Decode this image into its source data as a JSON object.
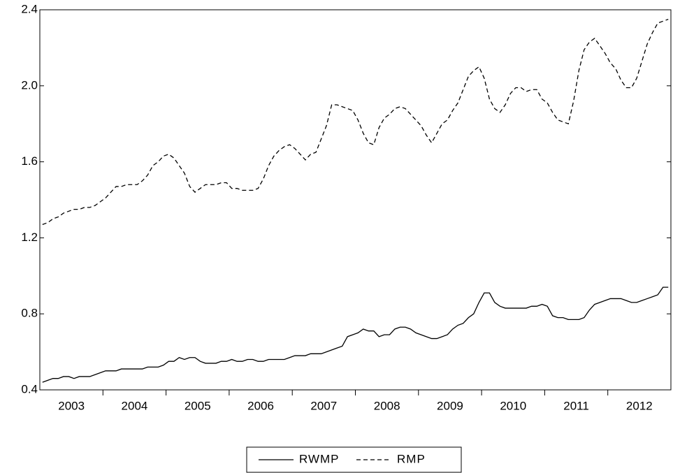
{
  "chart_data": {
    "type": "line",
    "categories": [
      "2003",
      null,
      null,
      null,
      null,
      null,
      null,
      null,
      null,
      null,
      null,
      null,
      "2004",
      null,
      null,
      null,
      null,
      null,
      null,
      null,
      null,
      null,
      null,
      null,
      "2005",
      null,
      null,
      null,
      null,
      null,
      null,
      null,
      null,
      null,
      null,
      null,
      "2006",
      null,
      null,
      null,
      null,
      null,
      null,
      null,
      null,
      null,
      null,
      null,
      "2007",
      null,
      null,
      null,
      null,
      null,
      null,
      null,
      null,
      null,
      null,
      null,
      "2008",
      null,
      null,
      null,
      null,
      null,
      null,
      null,
      null,
      null,
      null,
      null,
      "2009",
      null,
      null,
      null,
      null,
      null,
      null,
      null,
      null,
      null,
      null,
      null,
      "2010",
      null,
      null,
      null,
      null,
      null,
      null,
      null,
      null,
      null,
      null,
      null,
      "2011",
      null,
      null,
      null,
      null,
      null,
      null,
      null,
      null,
      null,
      null,
      null,
      "2012",
      null,
      null,
      null,
      null,
      null,
      null,
      null,
      null,
      null,
      null,
      null
    ],
    "series": [
      {
        "name": "RWMP",
        "color": "#000000",
        "style": "solid",
        "values": [
          0.44,
          0.45,
          0.46,
          0.46,
          0.47,
          0.47,
          0.46,
          0.47,
          0.47,
          0.47,
          0.48,
          0.49,
          0.5,
          0.5,
          0.5,
          0.51,
          0.51,
          0.51,
          0.51,
          0.51,
          0.52,
          0.52,
          0.52,
          0.53,
          0.55,
          0.55,
          0.57,
          0.56,
          0.57,
          0.57,
          0.55,
          0.54,
          0.54,
          0.54,
          0.55,
          0.55,
          0.56,
          0.55,
          0.55,
          0.56,
          0.56,
          0.55,
          0.55,
          0.56,
          0.56,
          0.56,
          0.56,
          0.57,
          0.58,
          0.58,
          0.58,
          0.59,
          0.59,
          0.59,
          0.6,
          0.61,
          0.62,
          0.63,
          0.68,
          0.69,
          0.7,
          0.72,
          0.71,
          0.71,
          0.68,
          0.69,
          0.69,
          0.72,
          0.73,
          0.73,
          0.72,
          0.7,
          0.69,
          0.68,
          0.67,
          0.67,
          0.68,
          0.69,
          0.72,
          0.74,
          0.75,
          0.78,
          0.8,
          0.86,
          0.91,
          0.91,
          0.86,
          0.84,
          0.83,
          0.83,
          0.83,
          0.83,
          0.83,
          0.84,
          0.84,
          0.85,
          0.84,
          0.79,
          0.78,
          0.78,
          0.77,
          0.77,
          0.77,
          0.78,
          0.82,
          0.85,
          0.86,
          0.87,
          0.88,
          0.88,
          0.88,
          0.87,
          0.86,
          0.86,
          0.87,
          0.88,
          0.89,
          0.9,
          0.94,
          0.94
        ]
      },
      {
        "name": "RMP",
        "color": "#000000",
        "style": "dashed",
        "values": [
          1.27,
          1.28,
          1.3,
          1.31,
          1.33,
          1.34,
          1.35,
          1.35,
          1.36,
          1.36,
          1.37,
          1.39,
          1.41,
          1.44,
          1.47,
          1.47,
          1.48,
          1.48,
          1.48,
          1.5,
          1.53,
          1.58,
          1.6,
          1.63,
          1.64,
          1.62,
          1.58,
          1.54,
          1.47,
          1.44,
          1.46,
          1.48,
          1.48,
          1.48,
          1.49,
          1.49,
          1.46,
          1.46,
          1.45,
          1.45,
          1.45,
          1.46,
          1.51,
          1.58,
          1.63,
          1.66,
          1.68,
          1.69,
          1.67,
          1.64,
          1.61,
          1.64,
          1.65,
          1.72,
          1.79,
          1.9,
          1.9,
          1.89,
          1.88,
          1.87,
          1.82,
          1.75,
          1.7,
          1.69,
          1.78,
          1.83,
          1.85,
          1.88,
          1.89,
          1.88,
          1.85,
          1.82,
          1.79,
          1.74,
          1.7,
          1.75,
          1.8,
          1.82,
          1.87,
          1.91,
          1.98,
          2.05,
          2.08,
          2.1,
          2.04,
          1.93,
          1.88,
          1.86,
          1.9,
          1.96,
          1.99,
          1.99,
          1.97,
          1.98,
          1.98,
          1.93,
          1.91,
          1.86,
          1.82,
          1.81,
          1.8,
          1.92,
          2.08,
          2.19,
          2.23,
          2.25,
          2.21,
          2.17,
          2.12,
          2.09,
          2.03,
          1.99,
          1.99,
          2.04,
          2.13,
          2.22,
          2.28,
          2.33,
          2.34,
          2.35
        ]
      }
    ],
    "ylim": [
      0.4,
      2.4
    ],
    "yticks": [
      0.4,
      0.8,
      1.2,
      1.6,
      {
        "value": 2.0,
        "label": "2.0"
      },
      2.4
    ],
    "grid": false
  }
}
